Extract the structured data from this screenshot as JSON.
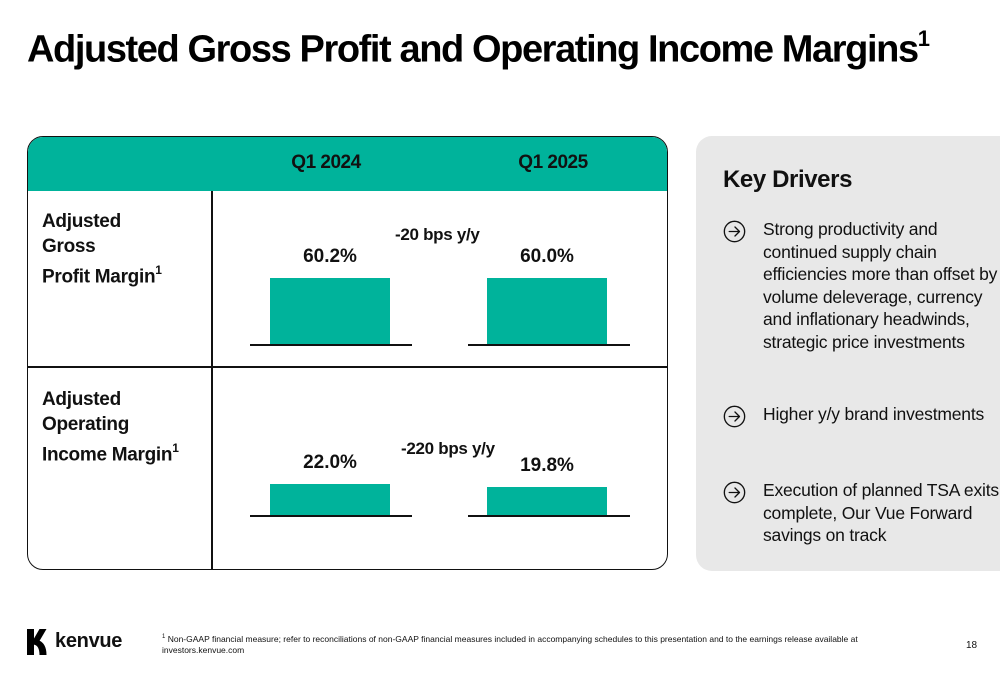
{
  "title": {
    "text": "Adjusted Gross Profit and Operating Income Margins",
    "footnote_mark": "1"
  },
  "table": {
    "columns": [
      "Q1 2024",
      "Q1 2025"
    ],
    "rows": [
      {
        "label_lines": [
          "Adjusted",
          "Gross",
          "Profit Margin"
        ],
        "footnote_mark": "1",
        "values": [
          "60.2%",
          "60.0%"
        ],
        "delta": "-20 bps y/y"
      },
      {
        "label_lines": [
          "Adjusted",
          "Operating",
          "Income Margin"
        ],
        "footnote_mark": "1",
        "values": [
          "22.0%",
          "19.8%"
        ],
        "delta": "-220 bps y/y"
      }
    ]
  },
  "chart_data": [
    {
      "type": "bar",
      "categories": [
        "Q1 2024",
        "Q1 2025"
      ],
      "values": [
        60.2,
        60.0
      ],
      "unit": "%",
      "title": "Adjusted Gross Profit Margin",
      "annotation": "-20 bps y/y"
    },
    {
      "type": "bar",
      "categories": [
        "Q1 2024",
        "Q1 2025"
      ],
      "values": [
        22.0,
        19.8
      ],
      "unit": "%",
      "title": "Adjusted Operating Income Margin",
      "annotation": "-220 bps y/y"
    }
  ],
  "key_drivers": {
    "title": "Key Drivers",
    "items": [
      {
        "icon": "arrow-right-circle-icon",
        "text": "Strong productivity and continued supply chain efficiencies more than offset by volume deleverage, currency and inflationary headwinds, strategic price investments"
      },
      {
        "icon": "arrow-right-circle-icon",
        "text": "Higher y/y brand investments"
      },
      {
        "icon": "arrow-right-circle-icon",
        "text": "Execution of planned TSA exits complete, Our Vue Forward savings on track"
      }
    ]
  },
  "footer": {
    "logo_text": "kenvue",
    "footnote_mark": "1",
    "footnote": "Non-GAAP financial measure; refer to reconciliations of non-GAAP financial measures included in accompanying schedules to this presentation and to the earnings release available at investors.kenvue.com",
    "page_number": "18"
  },
  "colors": {
    "accent": "#00b39b",
    "panel": "#e8e8e8",
    "text": "#111111"
  }
}
